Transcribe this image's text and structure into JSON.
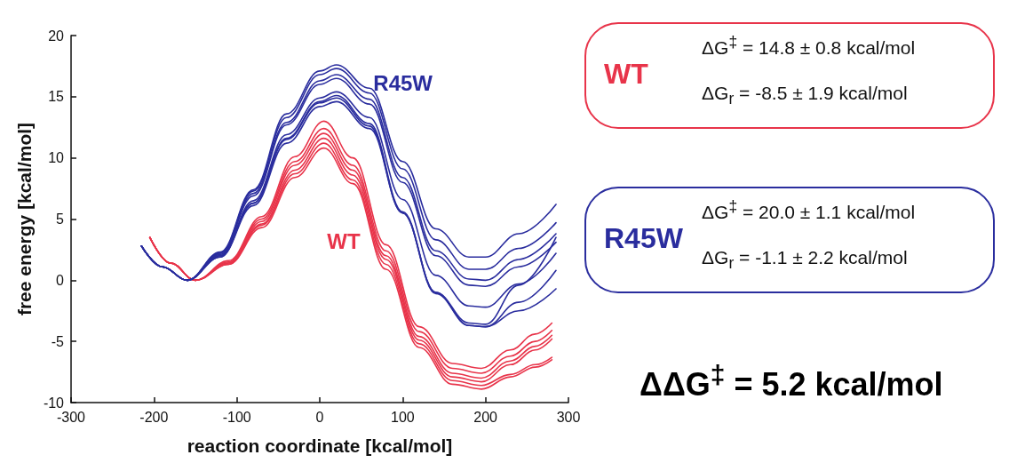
{
  "chart_data": {
    "type": "line",
    "xlabel": "reaction coordinate [kcal/mol]",
    "ylabel": "free energy [kcal/mol]",
    "xlim": [
      -300,
      300
    ],
    "xticks": [
      -300,
      -200,
      -100,
      0,
      100,
      200,
      300
    ],
    "ylim": [
      -10,
      20
    ],
    "yticks": [
      -10,
      -5,
      0,
      5,
      10,
      15,
      20
    ],
    "grid": false,
    "legend": false,
    "marker": "none",
    "line_style": "solid",
    "annotations": [
      "WT",
      "ΔG$^{‡}$ = 14.8 ± 0.8 kcal/mol",
      "ΔG$_{r}$ = -8.5 ± 1.9 kcal/mol",
      "R45W",
      "ΔG$^{‡}$ = 20.0 ± 1.1 kcal/mol",
      "ΔG$_{r}$ = -1.1 ± 2.2 kcal/mol",
      "ΔΔG$^{‡}$ = 5.2 kcal/mol"
    ],
    "series": [
      {
        "name": "WT",
        "color": "#e8344a",
        "x": [
          -205,
          -180,
          -150,
          -110,
          -70,
          -30,
          5,
          40,
          80,
          120,
          160,
          195,
          230,
          260,
          280
        ],
        "values": [
          3.5,
          1.4,
          0,
          1.6,
          5.2,
          10.1,
          13.0,
          10.0,
          2.9,
          -3.8,
          -6.8,
          -7.2,
          -5.7,
          -4.4,
          -3.5
        ]
      },
      {
        "color": "#e8344a",
        "x": [
          -205,
          -180,
          -150,
          -110,
          -70,
          -30,
          5,
          40,
          80,
          120,
          160,
          195,
          230,
          260,
          280
        ],
        "values": [
          3.5,
          1.4,
          0,
          1.5,
          5.0,
          9.7,
          12.4,
          9.4,
          2.4,
          -4.2,
          -7.2,
          -7.6,
          -6.2,
          -5.0,
          -4.1
        ]
      },
      {
        "color": "#e8344a",
        "x": [
          -205,
          -180,
          -150,
          -110,
          -70,
          -30,
          5,
          40,
          80,
          120,
          160,
          195,
          230,
          260,
          280
        ],
        "values": [
          3.5,
          1.4,
          0,
          1.4,
          4.8,
          9.4,
          12.0,
          9.0,
          2.0,
          -4.6,
          -7.6,
          -8.0,
          -6.6,
          -5.4,
          -4.5
        ]
      },
      {
        "color": "#e8344a",
        "x": [
          -205,
          -180,
          -150,
          -110,
          -70,
          -30,
          5,
          40,
          80,
          120,
          160,
          195,
          230,
          260,
          280
        ],
        "values": [
          3.5,
          1.4,
          0,
          1.4,
          4.6,
          9.0,
          11.6,
          8.6,
          1.7,
          -4.9,
          -7.9,
          -8.3,
          -6.9,
          -5.7,
          -4.8
        ]
      },
      {
        "color": "#e8344a",
        "x": [
          -205,
          -180,
          -150,
          -110,
          -70,
          -30,
          5,
          40,
          80,
          120,
          160,
          195,
          230,
          260,
          280
        ],
        "values": [
          3.5,
          1.4,
          0,
          1.3,
          4.5,
          8.7,
          11.2,
          8.2,
          1.3,
          -5.2,
          -8.2,
          -8.6,
          -7.7,
          -6.9,
          -6.3
        ]
      },
      {
        "color": "#e8344a",
        "x": [
          -205,
          -180,
          -150,
          -110,
          -70,
          -30,
          5,
          40,
          80,
          120,
          160,
          195,
          230,
          260,
          280
        ],
        "values": [
          3.5,
          1.4,
          0,
          1.3,
          4.3,
          8.4,
          10.8,
          7.9,
          0.9,
          -5.5,
          -8.5,
          -8.9,
          -7.9,
          -7.1,
          -6.5
        ]
      },
      {
        "name": "R45W",
        "color": "#2a2d9e",
        "x": [
          -215,
          -190,
          -160,
          -120,
          -80,
          -40,
          0,
          20,
          60,
          100,
          140,
          180,
          200,
          240,
          285
        ],
        "values": [
          2.8,
          1.1,
          0,
          2.3,
          7.4,
          13.6,
          17.1,
          17.6,
          15.7,
          9.7,
          4.2,
          1.9,
          1.9,
          3.8,
          6.2
        ]
      },
      {
        "color": "#2a2d9e",
        "x": [
          -215,
          -190,
          -160,
          -120,
          -80,
          -40,
          0,
          20,
          60,
          100,
          140,
          180,
          200,
          240,
          285
        ],
        "values": [
          2.8,
          1.1,
          0,
          2.2,
          7.3,
          13.3,
          16.8,
          17.3,
          15.3,
          9.1,
          3.3,
          0.9,
          0.9,
          2.6,
          4.7
        ]
      },
      {
        "color": "#2a2d9e",
        "x": [
          -215,
          -190,
          -160,
          -120,
          -80,
          -40,
          0,
          20,
          60,
          100,
          140,
          180,
          200,
          240,
          285
        ],
        "values": [
          2.8,
          1.1,
          0,
          2.2,
          7.1,
          12.9,
          16.3,
          16.8,
          14.8,
          8.4,
          2.4,
          0.1,
          0.0,
          1.7,
          3.8
        ]
      },
      {
        "color": "#2a2d9e",
        "x": [
          -215,
          -190,
          -160,
          -120,
          -80,
          -40,
          0,
          20,
          60,
          100,
          140,
          180,
          200,
          240,
          285
        ],
        "values": [
          2.8,
          1.1,
          0,
          2.1,
          6.9,
          12.7,
          16.0,
          16.5,
          14.4,
          8.0,
          2.0,
          -0.4,
          -0.5,
          1.1,
          3.1
        ]
      },
      {
        "color": "#2a2d9e",
        "x": [
          -215,
          -190,
          -160,
          -120,
          -80,
          -40,
          0,
          20,
          60,
          100,
          140,
          180,
          200,
          240,
          285
        ],
        "values": [
          2.8,
          1.1,
          0,
          2.0,
          6.5,
          11.9,
          14.9,
          15.4,
          13.3,
          6.6,
          0.4,
          -2.1,
          -2.2,
          -0.3,
          2.2
        ]
      },
      {
        "color": "#2a2d9e",
        "x": [
          -215,
          -190,
          -160,
          -120,
          -80,
          -40,
          0,
          20,
          60,
          100,
          140,
          180,
          200,
          240,
          285
        ],
        "values": [
          2.8,
          1.1,
          0,
          2.0,
          6.3,
          11.6,
          14.6,
          15.1,
          12.8,
          5.6,
          -1.0,
          -3.7,
          -3.8,
          -1.8,
          0.8
        ]
      },
      {
        "color": "#2a2d9e",
        "x": [
          -215,
          -190,
          -160,
          -120,
          -80,
          -40,
          0,
          20,
          60,
          100,
          140,
          180,
          200,
          240,
          285
        ],
        "values": [
          2.8,
          1.1,
          0,
          1.9,
          6.3,
          11.5,
          14.5,
          14.9,
          12.6,
          5.5,
          -1.1,
          -3.7,
          -3.8,
          -2.5,
          -0.7
        ]
      },
      {
        "color": "#2a2d9e",
        "x": [
          -215,
          -190,
          -160,
          -120,
          -80,
          -40,
          0,
          20,
          60,
          100,
          140,
          180,
          200,
          240,
          285
        ],
        "values": [
          2.8,
          1.1,
          0,
          1.9,
          6.1,
          11.2,
          14.2,
          14.6,
          12.4,
          5.5,
          -1.0,
          -3.5,
          -3.6,
          -0.4,
          3.5
        ]
      }
    ]
  }
}
